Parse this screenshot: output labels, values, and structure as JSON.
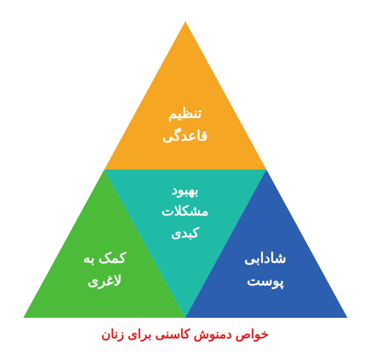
{
  "pyramid": {
    "type": "infographic",
    "background_color": "#ffffff",
    "segments": {
      "top": {
        "text": "تنظیم\nقاعدگی",
        "color": "#f5a623",
        "fontsize": 20,
        "text_color": "#ffffff"
      },
      "middle": {
        "text": "بهبود\nمشکلات\nکبدی",
        "color": "#1fbba6",
        "fontsize": 19,
        "text_color": "#ffffff"
      },
      "left": {
        "text": "کمک به\nلاغری",
        "color": "#4cbb3a",
        "fontsize": 20,
        "text_color": "#ffffff"
      },
      "right": {
        "text": "شادابی\nپوست",
        "color": "#2d5fb0",
        "fontsize": 20,
        "text_color": "#ffffff"
      }
    }
  },
  "caption": {
    "text": "خواص دمنوش کاسنی برای زنان",
    "color": "#e21d1d",
    "fontsize": 18
  }
}
